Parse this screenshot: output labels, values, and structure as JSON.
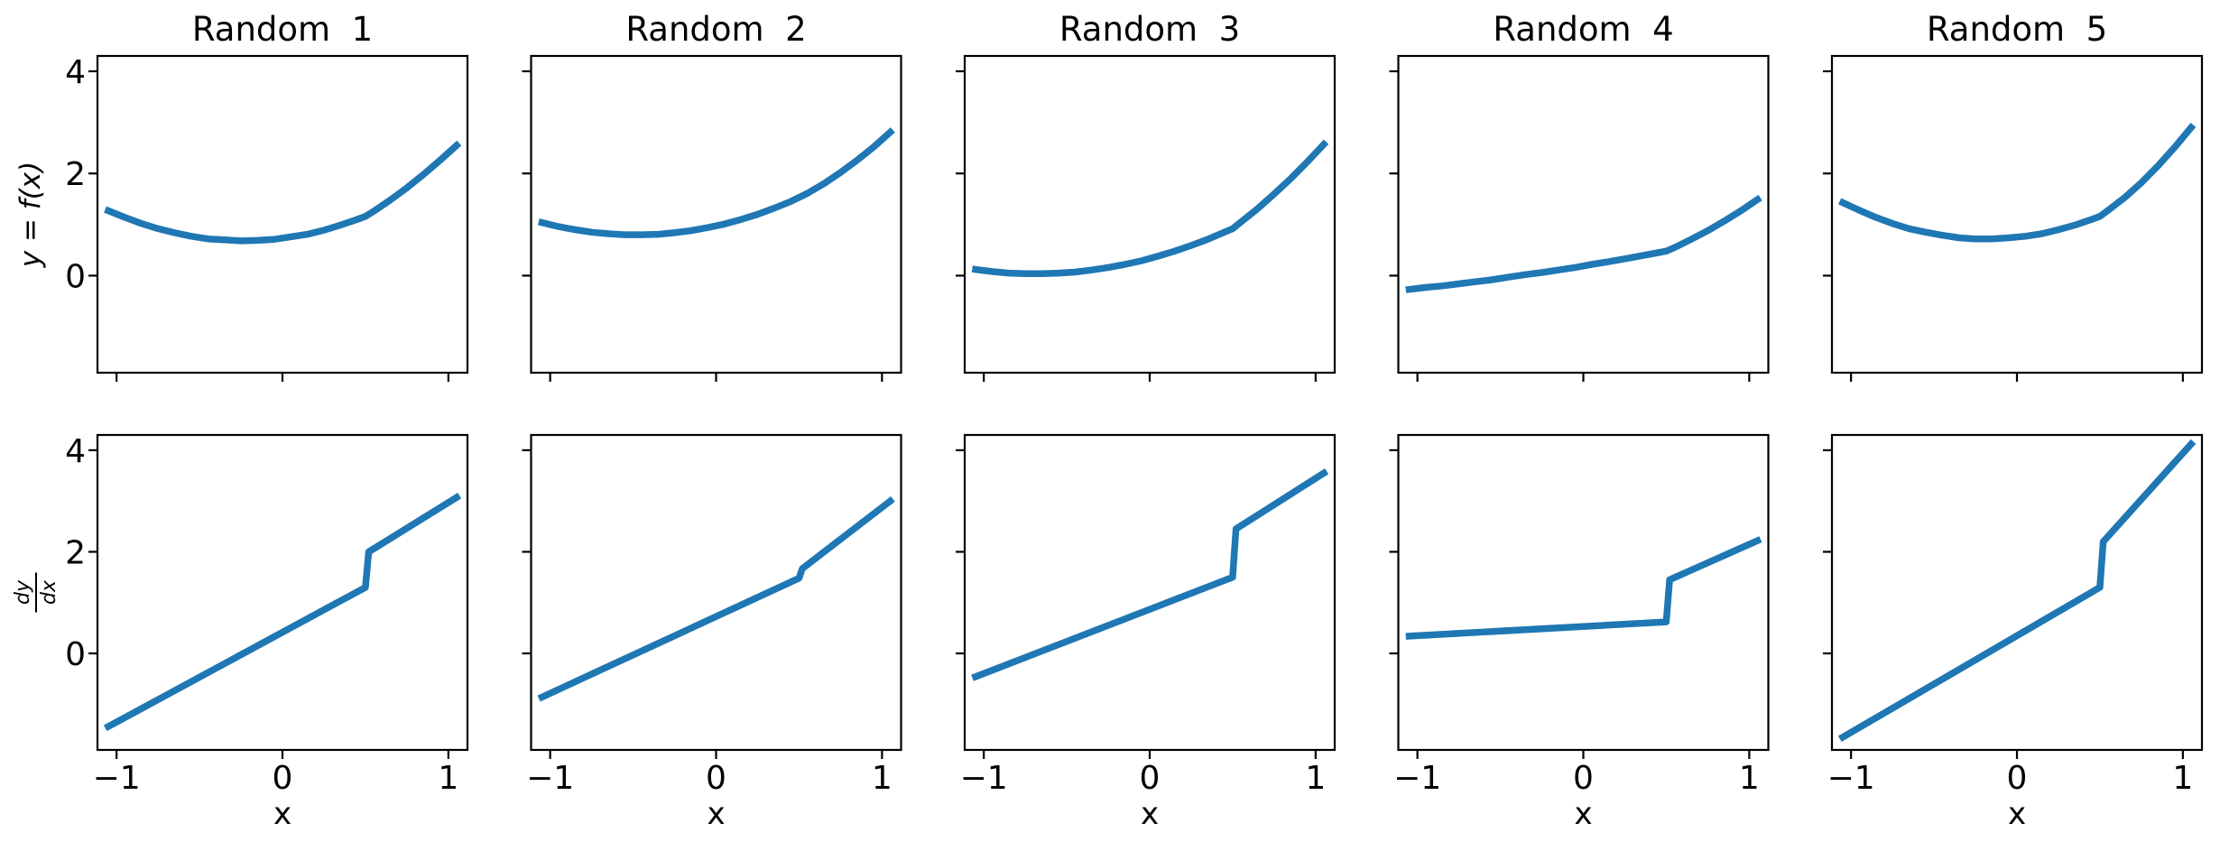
{
  "figure": {
    "background": "#ffffff",
    "axis_color": "#000000",
    "line_color": "#1f77b4"
  },
  "chart_data": {
    "type": "line",
    "grid": false,
    "legend": null,
    "xlim": [
      -1.115,
      1.115
    ],
    "ylim": [
      -1.9,
      4.3
    ],
    "x_ticks": [
      -1,
      0,
      1
    ],
    "x_tick_labels": [
      "−1",
      "0",
      "1"
    ],
    "y_ticks": [
      0,
      2,
      4
    ],
    "y_tick_labels": [
      "0",
      "2",
      "4"
    ],
    "rows": [
      {
        "ylabel": "y = f(x)"
      },
      {
        "ylabel_numerator": "dy",
        "ylabel_denominator": "dx",
        "xlabel": "x"
      }
    ],
    "columns": [
      {
        "title": "Random  1",
        "f": {
          "x": [
            -1.05,
            -0.95,
            -0.85,
            -0.75,
            -0.65,
            -0.55,
            -0.45,
            -0.35,
            -0.25,
            -0.15,
            -0.05,
            0.05,
            0.15,
            0.25,
            0.35,
            0.45,
            0.5,
            0.55,
            0.65,
            0.75,
            0.85,
            0.95,
            1.05
          ],
          "y": [
            1.27,
            1.14,
            1.02,
            0.92,
            0.84,
            0.77,
            0.72,
            0.7,
            0.68,
            0.69,
            0.71,
            0.76,
            0.81,
            0.89,
            0.99,
            1.1,
            1.16,
            1.26,
            1.48,
            1.72,
            1.98,
            2.26,
            2.55
          ]
        },
        "derivative": {
          "x": [
            -1.05,
            0.5,
            0.52,
            1.05
          ],
          "y": [
            -1.44,
            1.3,
            2.0,
            3.07
          ]
        }
      },
      {
        "title": "Random  2",
        "f": {
          "x": [
            -1.05,
            -0.95,
            -0.85,
            -0.75,
            -0.65,
            -0.55,
            -0.45,
            -0.35,
            -0.25,
            -0.15,
            -0.05,
            0.05,
            0.15,
            0.25,
            0.35,
            0.45,
            0.5,
            0.55,
            0.65,
            0.75,
            0.85,
            0.95,
            1.05
          ],
          "y": [
            1.04,
            0.96,
            0.9,
            0.85,
            0.82,
            0.8,
            0.8,
            0.81,
            0.84,
            0.88,
            0.94,
            1.01,
            1.1,
            1.2,
            1.32,
            1.45,
            1.53,
            1.61,
            1.8,
            2.02,
            2.26,
            2.52,
            2.81
          ]
        },
        "derivative": {
          "x": [
            -1.05,
            0.5,
            0.52,
            1.05
          ],
          "y": [
            -0.86,
            1.48,
            1.67,
            3.0
          ]
        }
      },
      {
        "title": "Random  3",
        "f": {
          "x": [
            -1.05,
            -0.95,
            -0.85,
            -0.75,
            -0.65,
            -0.55,
            -0.45,
            -0.35,
            -0.25,
            -0.15,
            -0.05,
            0.05,
            0.15,
            0.25,
            0.35,
            0.45,
            0.5,
            0.55,
            0.65,
            0.75,
            0.85,
            0.95,
            1.05
          ],
          "y": [
            0.12,
            0.08,
            0.05,
            0.04,
            0.04,
            0.05,
            0.07,
            0.11,
            0.16,
            0.22,
            0.29,
            0.38,
            0.48,
            0.59,
            0.71,
            0.85,
            0.92,
            1.05,
            1.31,
            1.6,
            1.9,
            2.23,
            2.57
          ]
        },
        "derivative": {
          "x": [
            -1.05,
            0.5,
            0.52,
            1.05
          ],
          "y": [
            -0.46,
            1.5,
            2.45,
            3.55
          ]
        }
      },
      {
        "title": "Random  4",
        "f": {
          "x": [
            -1.05,
            -0.95,
            -0.85,
            -0.75,
            -0.65,
            -0.55,
            -0.45,
            -0.35,
            -0.25,
            -0.15,
            -0.05,
            0.05,
            0.15,
            0.25,
            0.35,
            0.45,
            0.5,
            0.55,
            0.65,
            0.75,
            0.85,
            0.95,
            1.05
          ],
          "y": [
            -0.27,
            -0.23,
            -0.2,
            -0.16,
            -0.12,
            -0.08,
            -0.03,
            0.02,
            0.06,
            0.11,
            0.16,
            0.22,
            0.27,
            0.33,
            0.39,
            0.45,
            0.48,
            0.55,
            0.71,
            0.88,
            1.07,
            1.27,
            1.49
          ]
        },
        "derivative": {
          "x": [
            -1.05,
            0.5,
            0.52,
            1.05
          ],
          "y": [
            0.34,
            0.62,
            1.45,
            2.22
          ]
        }
      },
      {
        "title": "Random  5",
        "f": {
          "x": [
            -1.05,
            -0.95,
            -0.85,
            -0.75,
            -0.65,
            -0.55,
            -0.45,
            -0.35,
            -0.25,
            -0.15,
            -0.05,
            0.05,
            0.15,
            0.25,
            0.35,
            0.45,
            0.5,
            0.55,
            0.65,
            0.75,
            0.85,
            0.95,
            1.05
          ],
          "y": [
            1.43,
            1.28,
            1.14,
            1.02,
            0.92,
            0.85,
            0.79,
            0.74,
            0.72,
            0.72,
            0.74,
            0.77,
            0.82,
            0.9,
            0.99,
            1.1,
            1.16,
            1.28,
            1.53,
            1.82,
            2.15,
            2.51,
            2.9
          ]
        },
        "derivative": {
          "x": [
            -1.05,
            0.5,
            0.52,
            1.05
          ],
          "y": [
            -1.65,
            1.3,
            2.2,
            4.12
          ]
        }
      }
    ]
  }
}
